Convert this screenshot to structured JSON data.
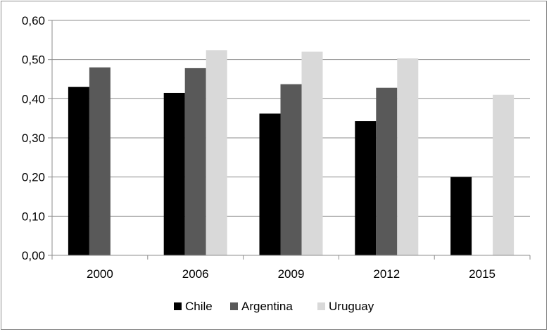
{
  "chart_data": {
    "type": "bar",
    "categories": [
      "2000",
      "2006",
      "2009",
      "2012",
      "2015"
    ],
    "series": [
      {
        "name": "Chile",
        "color": "#000000",
        "values": [
          0.43,
          0.415,
          0.362,
          0.343,
          0.2
        ]
      },
      {
        "name": "Argentina",
        "color": "#595959",
        "values": [
          0.48,
          0.478,
          0.437,
          0.428,
          null
        ]
      },
      {
        "name": "Uruguay",
        "color": "#d9d9d9",
        "values": [
          null,
          0.524,
          0.52,
          0.503,
          0.41
        ]
      }
    ],
    "ylim": [
      0,
      0.6
    ],
    "yticks": [
      "0,00",
      "0,10",
      "0,20",
      "0,30",
      "0,40",
      "0,50",
      "0,60"
    ],
    "grid": true,
    "legend_position": "bottom",
    "title": "",
    "xlabel": "",
    "ylabel": ""
  }
}
